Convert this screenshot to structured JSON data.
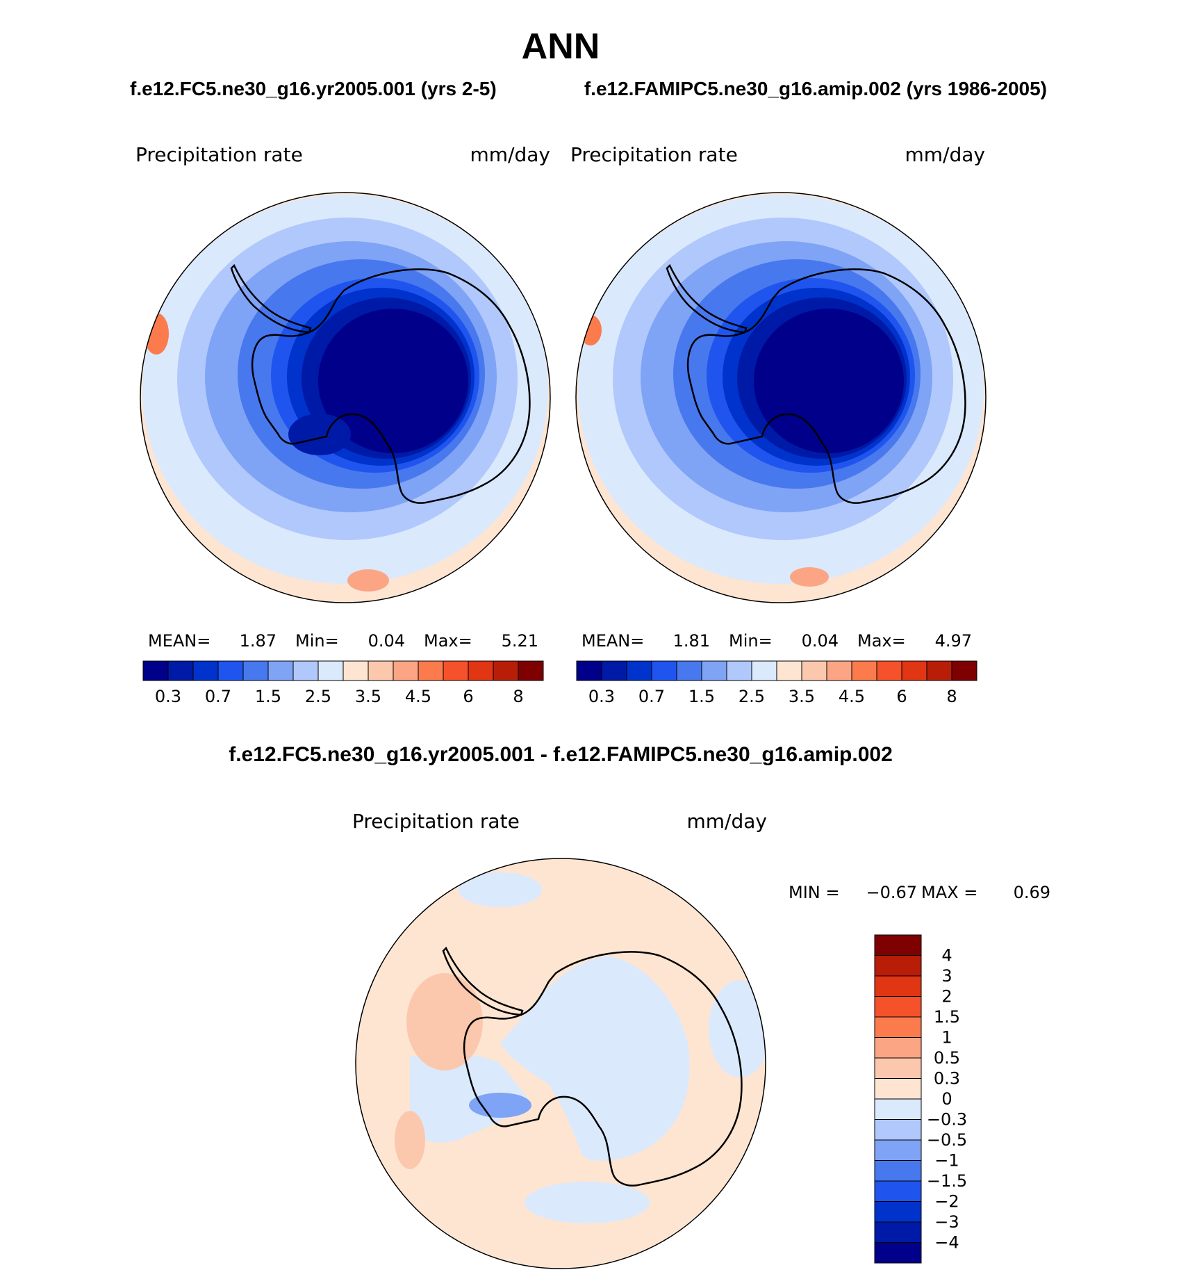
{
  "figure": {
    "title": "ANN",
    "case_left": "f.e12.FC5.ne30_g16.yr2005.001 (yrs 2-5)",
    "case_right": "f.e12.FAMIPC5.ne30_g16.amip.002 (yrs 1986-2005)",
    "diff_title": "f.e12.FC5.ne30_g16.yr2005.001 - f.e12.FAMIPC5.ne30_g16.amip.002"
  },
  "panels": [
    {
      "variable": "Precipitation  rate",
      "units": "mm/day",
      "stats": {
        "mean_label": "MEAN=",
        "mean": "1.87",
        "min_label": "Min=",
        "min": "0.04",
        "max_label": "Max=",
        "max": "5.21"
      }
    },
    {
      "variable": "Precipitation  rate",
      "units": "mm/day",
      "stats": {
        "mean_label": "MEAN=",
        "mean": "1.81",
        "min_label": "Min=",
        "min": "0.04",
        "max_label": "Max=",
        "max": "4.97"
      }
    },
    {
      "variable": "Precipitation  rate",
      "units": "mm/day",
      "stats": {
        "min_label": "MIN =",
        "min": "−0.67",
        "max_label": "MAX =",
        "max": "0.69"
      }
    }
  ],
  "colorbar_horizontal": {
    "colors": [
      "#00008a",
      "#001aa8",
      "#0033cc",
      "#1f55ee",
      "#4878ee",
      "#7fa3f5",
      "#b0c8fb",
      "#dbe9fd",
      "#fde5d2",
      "#fcc8ad",
      "#fca584",
      "#fb7b4c",
      "#f5512a",
      "#e03614",
      "#b81d08",
      "#7e0000"
    ],
    "tick_labels": [
      "0.3",
      "0.7",
      "1.5",
      "2.5",
      "3.5",
      "4.5",
      "6",
      "8"
    ]
  },
  "colorbar_vertical": {
    "colors": [
      "#7e0000",
      "#b81d08",
      "#e03614",
      "#f5512a",
      "#fb7b4c",
      "#fca584",
      "#fcc8ad",
      "#fde5d2",
      "#dbe9fd",
      "#b0c8fb",
      "#7fa3f5",
      "#4878ee",
      "#1f55ee",
      "#0033cc",
      "#001aa8",
      "#00008a"
    ],
    "tick_labels": [
      "4",
      "3",
      "2",
      "1.5",
      "1",
      "0.5",
      "0.3",
      "0",
      "−0.3",
      "−0.5",
      "−1",
      "−1.5",
      "−2",
      "−3",
      "−4"
    ]
  }
}
